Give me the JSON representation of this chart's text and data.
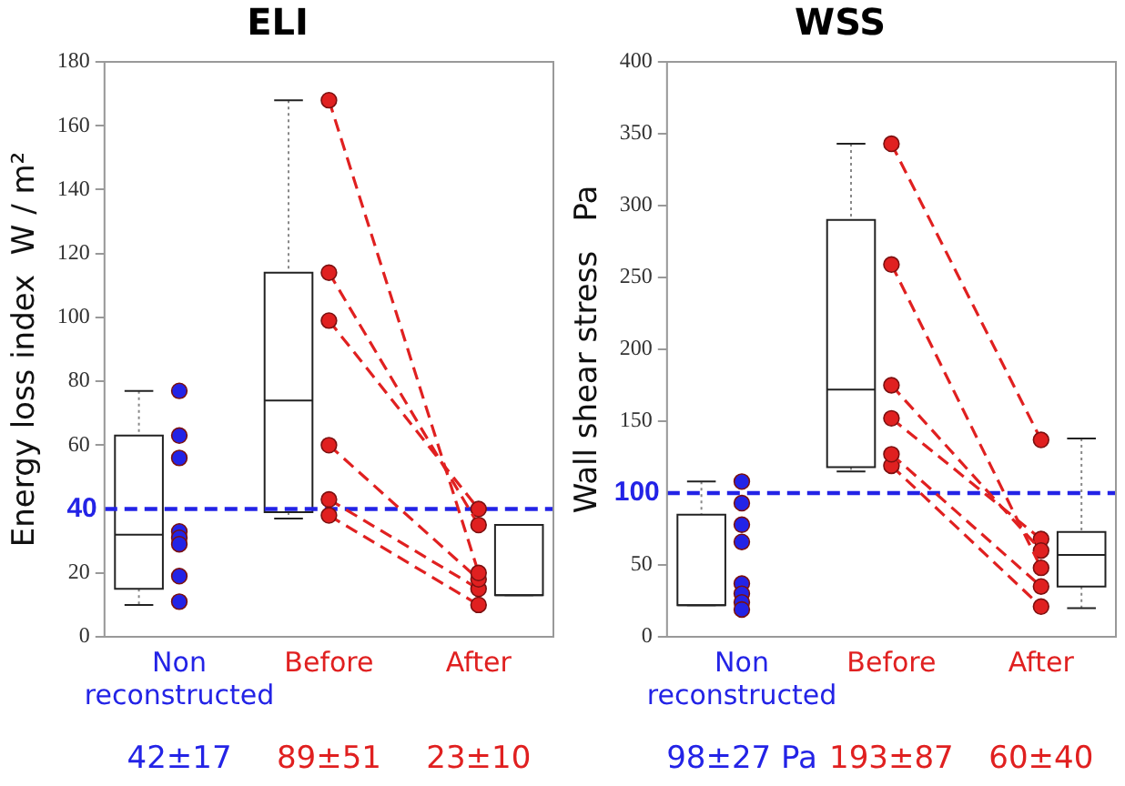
{
  "chart_data": [
    {
      "type": "box",
      "title": "ELI",
      "ylabel": "Energy loss index  W / m²",
      "categories": [
        "Non reconstructed",
        "Before",
        "After"
      ],
      "boxes": [
        {
          "low": 10,
          "q1": 15,
          "median": 32,
          "q3": 63,
          "high": 77
        },
        {
          "low": 37,
          "q1": 39,
          "median": 74,
          "q3": 114,
          "high": 168
        },
        {
          "low": 13,
          "q1": 13,
          "median": 13,
          "q3": 35,
          "high": 35
        }
      ],
      "series": [
        {
          "type": "scatter",
          "color": "#2323e6",
          "x": [
            "Non reconstructed",
            "Non reconstructed",
            "Non reconstructed",
            "Non reconstructed",
            "Non reconstructed",
            "Non reconstructed",
            "Non reconstructed",
            "Non reconstructed"
          ],
          "values": [
            77,
            63,
            56,
            33,
            31,
            29,
            19,
            11
          ]
        },
        {
          "type": "line",
          "color": "#e02020",
          "x": [
            "Before",
            "After"
          ],
          "values": [
            168,
            20
          ],
          "line_style": "dashed"
        },
        {
          "type": "line",
          "color": "#e02020",
          "x": [
            "Before",
            "After"
          ],
          "values": [
            114,
            35
          ],
          "line_style": "dashed"
        },
        {
          "type": "line",
          "color": "#e02020",
          "x": [
            "Before",
            "After"
          ],
          "values": [
            99,
            40
          ],
          "line_style": "dashed"
        },
        {
          "type": "line",
          "color": "#e02020",
          "x": [
            "Before",
            "After"
          ],
          "values": [
            60,
            18
          ],
          "line_style": "dashed"
        },
        {
          "type": "line",
          "color": "#e02020",
          "x": [
            "Before",
            "After"
          ],
          "values": [
            43,
            15
          ],
          "line_style": "dashed"
        },
        {
          "type": "line",
          "color": "#e02020",
          "x": [
            "Before",
            "After"
          ],
          "values": [
            38,
            10
          ],
          "line_style": "dashed"
        }
      ],
      "ylim": [
        0,
        180
      ],
      "yticks": [
        0,
        20,
        60,
        80,
        100,
        120,
        140,
        160,
        180
      ],
      "ref_lines": [
        {
          "axis": "y",
          "value": 40,
          "label": "40",
          "color": "#2323e6",
          "line_style": "dashed"
        }
      ],
      "annotations": [
        "42±17",
        "89±51",
        "23±10"
      ],
      "grid": false,
      "legend": false,
      "marker": "circle"
    },
    {
      "type": "box",
      "title": "WSS",
      "ylabel": "Wall shear stress   Pa",
      "categories": [
        "Non reconstructed",
        "Before",
        "After"
      ],
      "boxes": [
        {
          "low": 22,
          "q1": 22,
          "median": 22,
          "q3": 85,
          "high": 108
        },
        {
          "low": 115,
          "q1": 118,
          "median": 172,
          "q3": 290,
          "high": 343
        },
        {
          "low": 20,
          "q1": 35,
          "median": 57,
          "q3": 73,
          "high": 138
        }
      ],
      "series": [
        {
          "type": "scatter",
          "color": "#2323e6",
          "x": [
            "Non reconstructed",
            "Non reconstructed",
            "Non reconstructed",
            "Non reconstructed",
            "Non reconstructed",
            "Non reconstructed",
            "Non reconstructed",
            "Non reconstructed"
          ],
          "values": [
            108,
            93,
            78,
            66,
            37,
            30,
            24,
            19
          ]
        },
        {
          "type": "line",
          "color": "#e02020",
          "x": [
            "Before",
            "After"
          ],
          "values": [
            343,
            137
          ],
          "line_style": "dashed"
        },
        {
          "type": "line",
          "color": "#e02020",
          "x": [
            "Before",
            "After"
          ],
          "values": [
            259,
            48
          ],
          "line_style": "dashed"
        },
        {
          "type": "line",
          "color": "#e02020",
          "x": [
            "Before",
            "After"
          ],
          "values": [
            175,
            60
          ],
          "line_style": "dashed"
        },
        {
          "type": "line",
          "color": "#e02020",
          "x": [
            "Before",
            "After"
          ],
          "values": [
            152,
            68
          ],
          "line_style": "dashed"
        },
        {
          "type": "line",
          "color": "#e02020",
          "x": [
            "Before",
            "After"
          ],
          "values": [
            127,
            35
          ],
          "line_style": "dashed"
        },
        {
          "type": "line",
          "color": "#e02020",
          "x": [
            "Before",
            "After"
          ],
          "values": [
            119,
            21
          ],
          "line_style": "dashed"
        }
      ],
      "ylim": [
        0,
        400
      ],
      "yticks": [
        0,
        50,
        150,
        200,
        250,
        300,
        350,
        400
      ],
      "ref_lines": [
        {
          "axis": "y",
          "value": 100,
          "label": "100",
          "color": "#2323e6",
          "line_style": "dashed"
        }
      ],
      "annotations": [
        "98±27 Pa",
        "193±87",
        "60±40"
      ],
      "grid": false,
      "legend": false,
      "marker": "circle"
    }
  ]
}
